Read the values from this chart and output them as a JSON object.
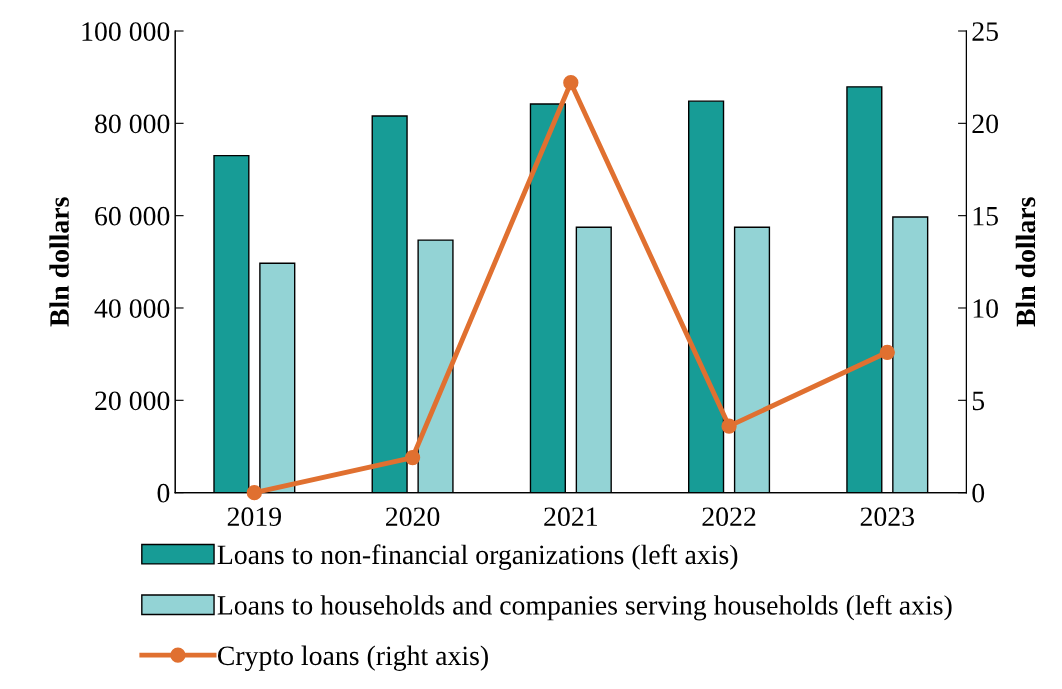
{
  "chart_data": {
    "type": "bar",
    "categories": [
      "2019",
      "2020",
      "2021",
      "2022",
      "2023"
    ],
    "ylabel": "Bln dollars",
    "y2label": "Bln dollars",
    "ylim": [
      0,
      100000
    ],
    "yticks": [
      {
        "value": 0,
        "label": "0"
      },
      {
        "value": 20000,
        "label": "20 000"
      },
      {
        "value": 40000,
        "label": "40 000"
      },
      {
        "value": 60000,
        "label": "60 000"
      },
      {
        "value": 80000,
        "label": "80 000"
      },
      {
        "value": 100000,
        "label": "100 000"
      }
    ],
    "y2lim": [
      0,
      25
    ],
    "y2ticks": [
      0,
      5,
      10,
      15,
      20,
      25
    ],
    "series": [
      {
        "name": "Loans to non-financial organizations (left axis)",
        "color": "#179c96",
        "values": [
          73000,
          81600,
          84200,
          84800,
          87900
        ]
      },
      {
        "name": "Loans to households and companies serving households (left axis)",
        "color": "#93d3d5",
        "values": [
          49700,
          54700,
          57500,
          57500,
          59700
        ]
      },
      {
        "name": "Crypto loans (right axis)",
        "type": "line",
        "axis": "y2",
        "color": "#e07030",
        "marker": "circle",
        "values": [
          0,
          1.9,
          22.2,
          3.6,
          7.6
        ]
      }
    ],
    "legend": "bottom",
    "grid": false
  }
}
